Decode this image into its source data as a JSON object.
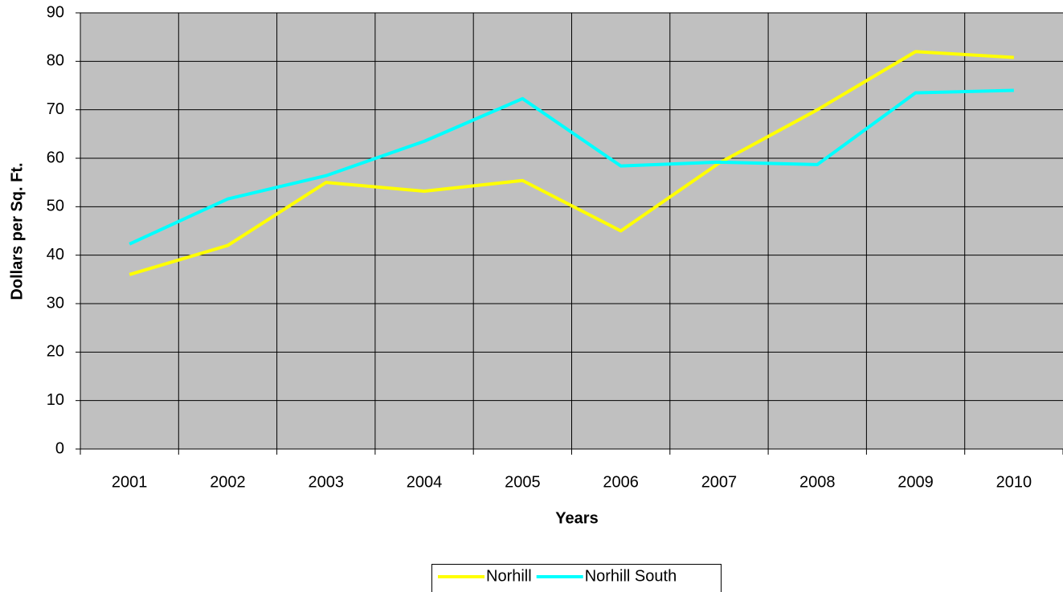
{
  "chart_data": {
    "type": "line",
    "y_label": "Dollars per Sq. Ft.",
    "x_label": "Years",
    "categories": [
      "2001",
      "2002",
      "2003",
      "2004",
      "2005",
      "2006",
      "2007",
      "2008",
      "2009",
      "2010"
    ],
    "series": [
      {
        "name": "Norhill",
        "color": "#ffff00",
        "values": [
          36,
          42,
          55,
          53.2,
          55.4,
          45,
          59,
          70,
          82,
          80.8
        ]
      },
      {
        "name": "Norhill South",
        "color": "#00ffff",
        "values": [
          42.3,
          51.6,
          56.4,
          63.5,
          72.3,
          58.4,
          59.2,
          58.7,
          73.5,
          74
        ]
      }
    ],
    "ylim": [
      0,
      90
    ],
    "yticks": [
      0,
      10,
      20,
      30,
      40,
      50,
      60,
      70,
      80,
      90
    ],
    "grid": true,
    "plot_background": "#c0c0c0",
    "legend": "bottom"
  }
}
